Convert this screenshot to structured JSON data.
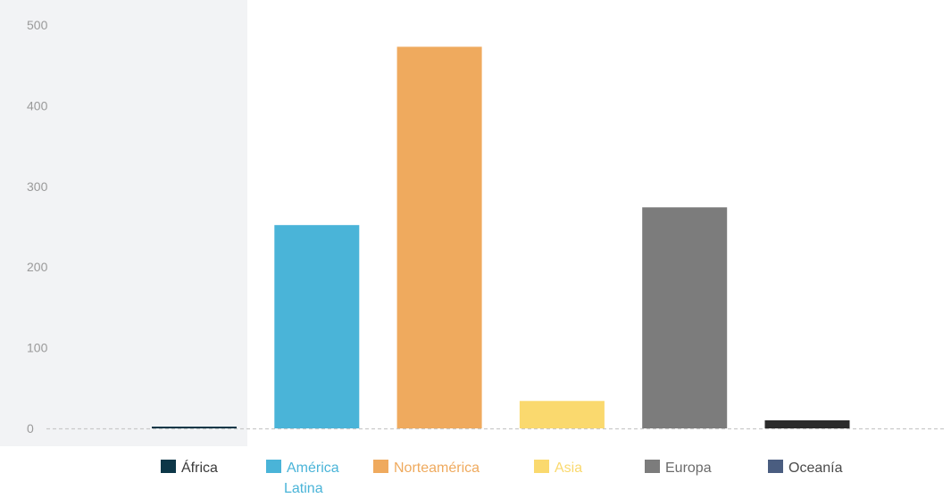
{
  "chart_data": {
    "type": "bar",
    "title": "",
    "xlabel": "",
    "ylabel": "",
    "ylim": [
      0,
      500
    ],
    "yticks": [
      0,
      100,
      200,
      300,
      400,
      500
    ],
    "grid": false,
    "legend_position": "bottom",
    "categories": [
      "África",
      "América Latina",
      "Norteamérica",
      "Asia",
      "Europa",
      "Oceanía"
    ],
    "values": [
      2,
      252,
      473,
      34,
      274,
      10
    ],
    "colors": [
      "#0d3748",
      "#4ab4d8",
      "#efaa5e",
      "#fad96e",
      "#7c7c7c",
      "#2b2b2b"
    ],
    "legend": [
      {
        "label": "África",
        "color": "#0d3748",
        "text_color": "#3a3a3a"
      },
      {
        "label": "América Latina",
        "color": "#4ab4d8",
        "text_color": "#4ab4d8"
      },
      {
        "label": "Norteamérica",
        "color": "#efaa5e",
        "text_color": "#efaa5e"
      },
      {
        "label": "Asia",
        "color": "#fad96e",
        "text_color": "#fad96e"
      },
      {
        "label": "Europa",
        "color": "#7c7c7c",
        "text_color": "#6b6b6b"
      },
      {
        "label": "Oceanía",
        "color": "#4a5d80",
        "text_color": "#4a4a4a"
      }
    ],
    "highlight_band_color": "#f2f3f5"
  }
}
